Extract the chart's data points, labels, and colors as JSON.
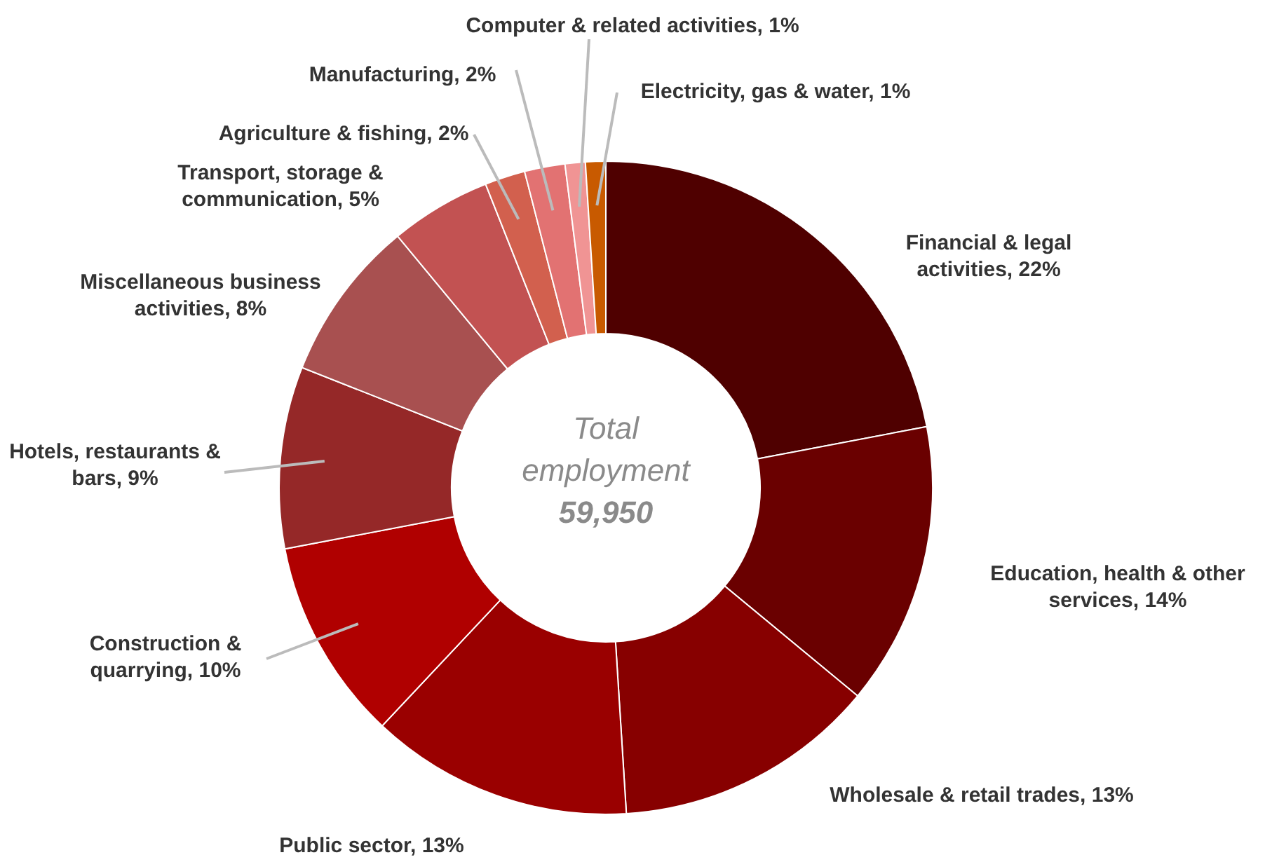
{
  "chart_data": {
    "type": "donut",
    "categories": [
      "Financial & legal activities",
      "Education, health & other services",
      "Wholesale & retail trades",
      "Public sector",
      "Construction & quarrying",
      "Hotels, restaurants & bars",
      "Miscellaneous business activities",
      "Transport, storage & communication",
      "Agriculture & fishing",
      "Manufacturing",
      "Computer & related activities",
      "Electricity, gas & water"
    ],
    "values": [
      22,
      14,
      13,
      13,
      10,
      9,
      8,
      5,
      2,
      2,
      1,
      1
    ],
    "value_labels": [
      "22%",
      "14%",
      "13%",
      "13%",
      "10%",
      "9%",
      "8%",
      "5%",
      "2%",
      "2%",
      "1%",
      "1%"
    ],
    "colors": [
      "#4f0000",
      "#6a0000",
      "#870000",
      "#9a0000",
      "#b00000",
      "#952828",
      "#a85050",
      "#c25252",
      "#d2604e",
      "#e27272",
      "#f09494",
      "#c85a00"
    ],
    "annotations": [
      "Total employment",
      "59,950"
    ]
  }
}
